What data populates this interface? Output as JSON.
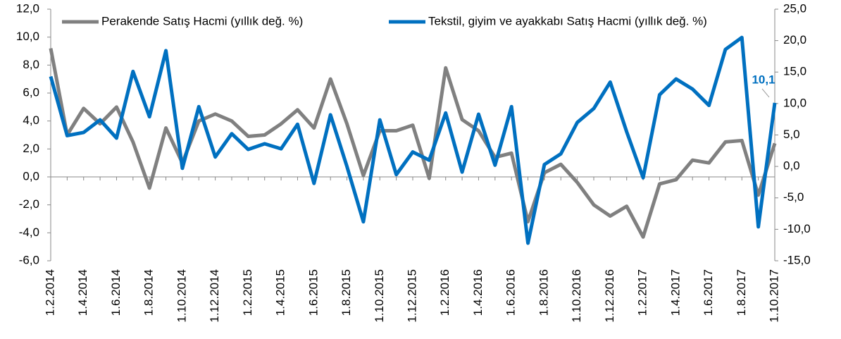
{
  "chart_data": {
    "type": "line",
    "categories": [
      "1.2.2014",
      null,
      "1.4.2014",
      null,
      "1.6.2014",
      null,
      "1.8.2014",
      null,
      "1.10.2014",
      null,
      "1.12.2014",
      null,
      "1.2.2015",
      null,
      "1.4.2015",
      null,
      "1.6.2015",
      null,
      "1.8.2015",
      null,
      "1.10.2015",
      null,
      "1.12.2015",
      null,
      "1.2.2016",
      null,
      "1.4.2016",
      null,
      "1.6.2016",
      null,
      "1.8.2016",
      null,
      "1.10.2016",
      null,
      "1.12.2016",
      null,
      "1.2.2017",
      null,
      "1.4.2017",
      null,
      "1.6.2017",
      null,
      "1.8.2017",
      null,
      "1.10.2017"
    ],
    "series": [
      {
        "name": "Perakende Satış Hacmi (yıllık değ. %)",
        "color": "#808080",
        "axis": "y",
        "values": [
          9.2,
          3.0,
          4.9,
          3.8,
          5.0,
          2.5,
          -0.8,
          3.5,
          1.0,
          4.0,
          4.5,
          4.0,
          2.9,
          3.0,
          3.8,
          4.8,
          3.5,
          7.0,
          3.8,
          0.1,
          3.3,
          3.3,
          3.7,
          -0.1,
          7.8,
          4.1,
          3.3,
          1.4,
          1.7,
          -3.2,
          0.3,
          0.9,
          -0.4,
          -2.0,
          -2.8,
          -2.1,
          -4.3,
          -0.5,
          -0.2,
          1.2,
          1.0,
          2.5,
          2.6,
          -1.3,
          2.4
        ]
      },
      {
        "name": "Tekstil, giyim ve ayakkabı Satış Hacmi (yıllık değ. %)",
        "color": "#0070c0",
        "axis": "y2",
        "values": [
          14.3,
          4.9,
          5.4,
          7.4,
          4.5,
          15.1,
          7.9,
          18.4,
          -0.3,
          9.5,
          1.5,
          5.2,
          2.7,
          3.6,
          2.8,
          6.7,
          -2.7,
          8.2,
          0.0,
          -8.8,
          7.4,
          -1.3,
          2.3,
          1.0,
          8.5,
          -0.9,
          8.3,
          0.2,
          9.5,
          -12.2,
          0.3,
          2.0,
          7.0,
          9.2,
          13.4,
          5.5,
          -1.8,
          11.4,
          13.9,
          12.3,
          9.7,
          18.6,
          20.5,
          -9.6,
          10.1
        ],
        "value_labels": [
          null,
          null,
          null,
          null,
          null,
          null,
          null,
          null,
          null,
          null,
          null,
          null,
          null,
          null,
          null,
          null,
          null,
          null,
          null,
          null,
          null,
          null,
          null,
          null,
          null,
          null,
          null,
          null,
          null,
          null,
          null,
          null,
          null,
          null,
          null,
          null,
          null,
          null,
          null,
          null,
          null,
          null,
          null,
          null,
          "10,1"
        ]
      }
    ],
    "ylim": [
      -6,
      12
    ],
    "yticks": [
      {
        "value": -6,
        "label": "-6,0"
      },
      {
        "value": -4,
        "label": "-4,0"
      },
      {
        "value": -2,
        "label": "-2,0"
      },
      {
        "value": 0,
        "label": "0,0"
      },
      {
        "value": 2,
        "label": "2,0"
      },
      {
        "value": 4,
        "label": "4,0"
      },
      {
        "value": 6,
        "label": "6,0"
      },
      {
        "value": 8,
        "label": "8,0"
      },
      {
        "value": 10,
        "label": "10,0"
      },
      {
        "value": 12,
        "label": "12,0"
      }
    ],
    "y2lim": [
      -15,
      25
    ],
    "y2ticks": [
      {
        "value": -15,
        "label": "-15,0"
      },
      {
        "value": -10,
        "label": "-10,0"
      },
      {
        "value": -5,
        "label": "-5,0"
      },
      {
        "value": 0,
        "label": "0,0"
      },
      {
        "value": 5,
        "label": "5,0"
      },
      {
        "value": 10,
        "label": "10,0"
      },
      {
        "value": 15,
        "label": "15,0"
      },
      {
        "value": 20,
        "label": "20,0"
      },
      {
        "value": 25,
        "label": "25,0"
      }
    ],
    "grid": false,
    "legend": "top"
  }
}
